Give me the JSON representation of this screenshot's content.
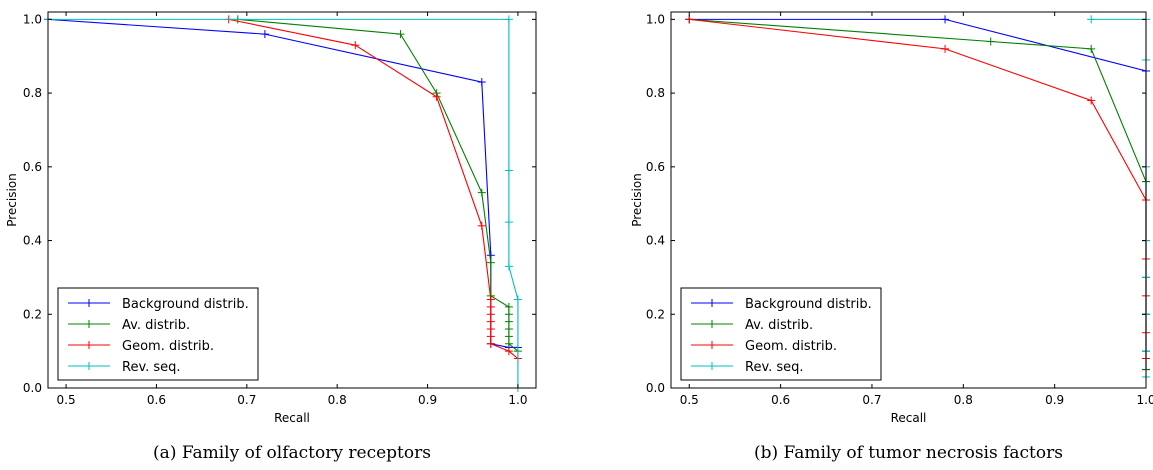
{
  "chart_data": [
    {
      "type": "line",
      "caption": "(a) Family of olfactory receptors",
      "xlabel": "Recall",
      "ylabel": "Precision",
      "xlim": [
        0.48,
        1.02
      ],
      "ylim": [
        0.0,
        1.02
      ],
      "xticks": [
        "0.5",
        "0.6",
        "0.7",
        "0.8",
        "0.9",
        "1.0"
      ],
      "yticks": [
        "0.0",
        "0.2",
        "0.4",
        "0.6",
        "0.8",
        "1.0"
      ],
      "grid": false,
      "legend_position": "lower-left",
      "series": [
        {
          "name": "Background distrib.",
          "color": "#0000ff",
          "points": [
            [
              0.48,
              1.0
            ],
            [
              0.72,
              0.96
            ],
            [
              0.96,
              0.83
            ],
            [
              0.97,
              0.36
            ],
            [
              0.97,
              0.12
            ],
            [
              0.99,
              0.11
            ],
            [
              1.0,
              0.11
            ]
          ]
        },
        {
          "name": "Av. distrib.",
          "color": "#008000",
          "points": [
            [
              0.69,
              1.0
            ],
            [
              0.87,
              0.96
            ],
            [
              0.91,
              0.8
            ],
            [
              0.96,
              0.53
            ],
            [
              0.97,
              0.34
            ],
            [
              0.97,
              0.25
            ],
            [
              0.99,
              0.22
            ],
            [
              0.99,
              0.2
            ],
            [
              0.99,
              0.18
            ],
            [
              0.99,
              0.16
            ],
            [
              0.99,
              0.14
            ],
            [
              0.99,
              0.12
            ],
            [
              1.0,
              0.1
            ]
          ]
        },
        {
          "name": "Geom. distrib.",
          "color": "#ff0000",
          "points": [
            [
              0.68,
              1.0
            ],
            [
              0.82,
              0.93
            ],
            [
              0.91,
              0.79
            ],
            [
              0.96,
              0.44
            ],
            [
              0.97,
              0.24
            ],
            [
              0.97,
              0.22
            ],
            [
              0.97,
              0.2
            ],
            [
              0.97,
              0.18
            ],
            [
              0.97,
              0.16
            ],
            [
              0.97,
              0.14
            ],
            [
              0.97,
              0.12
            ],
            [
              0.99,
              0.1
            ],
            [
              1.0,
              0.08
            ]
          ]
        },
        {
          "name": "Rev. seq.",
          "color": "#00bfbf",
          "points": [
            [
              0.48,
              1.0
            ],
            [
              0.99,
              1.0
            ],
            [
              0.99,
              0.59
            ],
            [
              0.99,
              0.45
            ],
            [
              0.99,
              0.33
            ],
            [
              1.0,
              0.24
            ],
            [
              1.0,
              0.0
            ]
          ]
        }
      ]
    },
    {
      "type": "line",
      "caption": "(b) Family of tumor necrosis factors",
      "xlabel": "Recall",
      "ylabel": "Precision",
      "xlim": [
        0.48,
        1.0
      ],
      "ylim": [
        0.0,
        1.02
      ],
      "xticks": [
        "0.5",
        "0.6",
        "0.7",
        "0.8",
        "0.9",
        "1.0"
      ],
      "yticks": [
        "0.0",
        "0.2",
        "0.4",
        "0.6",
        "0.8",
        "1.0"
      ],
      "grid": false,
      "legend_position": "lower-left",
      "series": [
        {
          "name": "Background distrib.",
          "color": "#0000ff",
          "points": [
            [
              0.5,
              1.0
            ],
            [
              0.78,
              1.0
            ],
            [
              1.0,
              0.86
            ],
            [
              1.0,
              0.56
            ],
            [
              1.0,
              0.4
            ],
            [
              1.0,
              0.3
            ],
            [
              1.0,
              0.2
            ],
            [
              1.0,
              0.1
            ],
            [
              1.0,
              0.05
            ]
          ]
        },
        {
          "name": "Av. distrib.",
          "color": "#008000",
          "points": [
            [
              0.5,
              1.0
            ],
            [
              0.83,
              0.94
            ],
            [
              0.94,
              0.92
            ],
            [
              1.0,
              0.56
            ],
            [
              1.0,
              0.4
            ],
            [
              1.0,
              0.3
            ],
            [
              1.0,
              0.2
            ],
            [
              1.0,
              0.1
            ],
            [
              1.0,
              0.05
            ]
          ]
        },
        {
          "name": "Geom. distrib.",
          "color": "#ff0000",
          "points": [
            [
              0.5,
              1.0
            ],
            [
              0.78,
              0.92
            ],
            [
              0.94,
              0.78
            ],
            [
              1.0,
              0.51
            ],
            [
              1.0,
              0.35
            ],
            [
              1.0,
              0.25
            ],
            [
              1.0,
              0.15
            ],
            [
              1.0,
              0.08
            ]
          ]
        },
        {
          "name": "Rev. seq.",
          "color": "#00bfbf",
          "points": [
            [
              0.94,
              1.0
            ],
            [
              1.0,
              1.0
            ],
            [
              1.0,
              0.89
            ],
            [
              1.0,
              0.6
            ],
            [
              1.0,
              0.4
            ],
            [
              1.0,
              0.3
            ],
            [
              1.0,
              0.2
            ],
            [
              1.0,
              0.1
            ],
            [
              1.0,
              0.03
            ]
          ]
        }
      ]
    }
  ]
}
